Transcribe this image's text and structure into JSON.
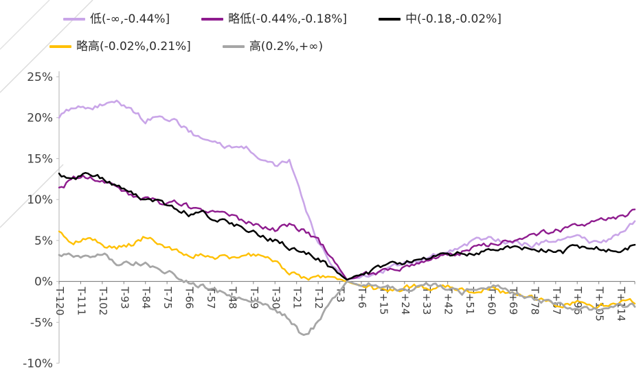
{
  "page": {
    "background_color": "#ffffff",
    "watermark_color": "#d9d9d9"
  },
  "legend": {
    "rows": [
      [
        {
          "series": "low",
          "label": "低(-∞,-0.44%]"
        },
        {
          "series": "slightly_low",
          "label": "略低(-0.44%,-0.18%]"
        },
        {
          "series": "mid",
          "label": "中(-0.18,-0.02%]"
        }
      ],
      [
        {
          "series": "slightly_high",
          "label": "略高(-0.02%,0.21%]"
        },
        {
          "series": "high",
          "label": "高(0.2%,+∞)"
        }
      ]
    ]
  },
  "chart_data": {
    "type": "line",
    "title": "",
    "xlabel": "",
    "ylabel": "",
    "grid": false,
    "legend_position": "top",
    "xlim": [
      -120,
      120
    ],
    "ylim": [
      -10,
      25
    ],
    "axis_color": "#808080",
    "label_color": "#404040",
    "y_ticks": [
      {
        "value": 25,
        "label": "25%"
      },
      {
        "value": 20,
        "label": "20%"
      },
      {
        "value": 15,
        "label": "15%"
      },
      {
        "value": 10,
        "label": "10%"
      },
      {
        "value": 5,
        "label": "5%"
      },
      {
        "value": 0,
        "label": "0%"
      },
      {
        "value": -5,
        "label": "-5%"
      },
      {
        "value": -10,
        "label": "-10%"
      }
    ],
    "x_ticks": [
      {
        "value": -120,
        "label": "T-120"
      },
      {
        "value": -111,
        "label": "T-111"
      },
      {
        "value": -102,
        "label": "T-102"
      },
      {
        "value": -93,
        "label": "T-93"
      },
      {
        "value": -84,
        "label": "T-84"
      },
      {
        "value": -75,
        "label": "T-75"
      },
      {
        "value": -66,
        "label": "T-66"
      },
      {
        "value": -57,
        "label": "T-57"
      },
      {
        "value": -48,
        "label": "T-48"
      },
      {
        "value": -39,
        "label": "T-39"
      },
      {
        "value": -30,
        "label": "T-30"
      },
      {
        "value": -21,
        "label": "T-21"
      },
      {
        "value": -12,
        "label": "T-12"
      },
      {
        "value": -3,
        "label": "T-3"
      },
      {
        "value": 6,
        "label": "T+6"
      },
      {
        "value": 15,
        "label": "T+15"
      },
      {
        "value": 24,
        "label": "T+24"
      },
      {
        "value": 33,
        "label": "T+33"
      },
      {
        "value": 42,
        "label": "T+42"
      },
      {
        "value": 51,
        "label": "T+51"
      },
      {
        "value": 60,
        "label": "T+60"
      },
      {
        "value": 69,
        "label": "T+69"
      },
      {
        "value": 78,
        "label": "T+78"
      },
      {
        "value": 87,
        "label": "T+87"
      },
      {
        "value": 96,
        "label": "T+96"
      },
      {
        "value": 105,
        "label": "T+105"
      },
      {
        "value": 114,
        "label": "T+114"
      }
    ],
    "x": [
      -120,
      -114,
      -108,
      -102,
      -96,
      -90,
      -84,
      -78,
      -72,
      -66,
      -60,
      -54,
      -48,
      -42,
      -36,
      -30,
      -24,
      -18,
      -12,
      -6,
      0,
      6,
      12,
      18,
      24,
      30,
      36,
      42,
      48,
      54,
      60,
      66,
      72,
      78,
      84,
      90,
      96,
      102,
      108,
      114,
      120
    ],
    "series": [
      {
        "key": "low",
        "name": "低(-∞,-0.44%]",
        "color": "#c9a5e8",
        "stroke_width": 2.6,
        "values": [
          20.2,
          21.4,
          21.0,
          21.6,
          21.9,
          21.2,
          19.6,
          20.3,
          19.6,
          18.4,
          17.2,
          16.6,
          16.5,
          16.2,
          15.3,
          14.2,
          14.9,
          9.5,
          4.5,
          1.8,
          0.2,
          0.6,
          1.1,
          1.6,
          2.1,
          2.6,
          3.1,
          3.9,
          4.3,
          5.1,
          5.4,
          5.0,
          4.7,
          4.4,
          4.9,
          5.1,
          5.4,
          4.8,
          5.1,
          6.1,
          7.1
        ]
      },
      {
        "key": "slightly_low",
        "name": "略低(-0.44%,-0.18%]",
        "color": "#8e1b8e",
        "stroke_width": 2.4,
        "values": [
          11.2,
          12.6,
          12.9,
          12.1,
          11.4,
          10.6,
          10.1,
          9.6,
          10.0,
          9.1,
          8.6,
          8.1,
          7.8,
          7.3,
          6.8,
          6.3,
          6.9,
          6.2,
          5.0,
          2.8,
          0.2,
          0.7,
          1.0,
          1.4,
          1.8,
          2.2,
          2.7,
          3.1,
          3.6,
          4.1,
          4.5,
          5.0,
          5.4,
          5.7,
          6.1,
          6.4,
          6.9,
          7.1,
          7.7,
          8.0,
          8.5
        ]
      },
      {
        "key": "mid",
        "name": "中(-0.18,-0.02%]",
        "color": "#000000",
        "stroke_width": 2.5,
        "values": [
          13.0,
          12.7,
          13.2,
          12.6,
          11.7,
          10.8,
          10.2,
          9.6,
          9.0,
          8.2,
          8.4,
          7.5,
          7.0,
          6.3,
          5.6,
          5.0,
          4.2,
          3.5,
          2.8,
          1.6,
          0.2,
          0.9,
          1.5,
          2.0,
          2.4,
          2.8,
          3.0,
          3.2,
          3.4,
          3.6,
          3.8,
          4.0,
          3.8,
          4.0,
          3.7,
          3.6,
          4.2,
          4.4,
          3.8,
          3.5,
          4.4
        ]
      },
      {
        "key": "slightly_high",
        "name": "略高(-0.02%,0.21%]",
        "color": "#ffc000",
        "stroke_width": 2.4,
        "values": [
          6.0,
          4.8,
          5.3,
          4.4,
          4.0,
          4.5,
          5.5,
          4.7,
          3.8,
          3.4,
          3.2,
          2.9,
          3.0,
          3.4,
          3.2,
          2.4,
          1.1,
          0.4,
          0.6,
          0.3,
          0.0,
          -0.6,
          -1.0,
          -1.2,
          -0.8,
          -0.6,
          -1.0,
          -0.8,
          -1.0,
          -1.2,
          -0.8,
          -1.4,
          -1.8,
          -2.2,
          -2.6,
          -2.9,
          -2.7,
          -3.0,
          -2.8,
          -2.4,
          -2.6
        ]
      },
      {
        "key": "high",
        "name": "高(0.2%,+∞)",
        "color": "#a6a6a6",
        "stroke_width": 2.8,
        "values": [
          3.2,
          3.3,
          2.8,
          3.4,
          2.4,
          2.2,
          2.3,
          1.6,
          0.8,
          0.0,
          -0.6,
          -1.2,
          -2.0,
          -2.2,
          -2.6,
          -3.4,
          -4.6,
          -6.8,
          -5.0,
          -2.4,
          0.0,
          -0.5,
          -0.3,
          -0.6,
          -1.0,
          -0.5,
          -0.4,
          -0.7,
          -1.4,
          -1.0,
          -0.6,
          -1.0,
          -1.6,
          -2.0,
          -2.5,
          -3.0,
          -3.2,
          -3.5,
          -3.2,
          -3.0,
          -3.0
        ]
      }
    ]
  }
}
